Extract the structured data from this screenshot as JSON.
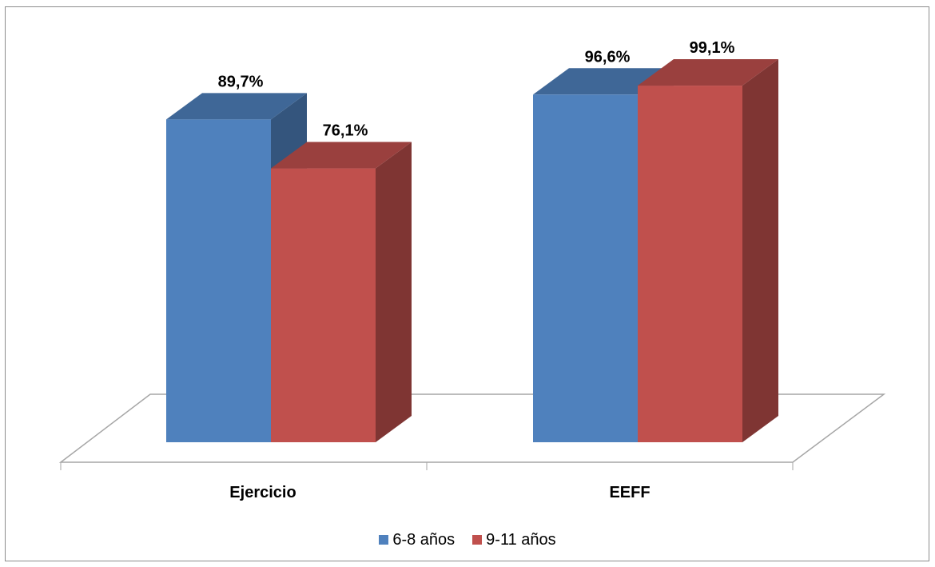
{
  "chart_data": {
    "type": "bar",
    "categories": [
      "Ejercicio",
      "EEFF"
    ],
    "series": [
      {
        "name": "6-8 años",
        "values": [
          89.7,
          96.6
        ],
        "labels": [
          "89,7%",
          "96,6%"
        ],
        "color": "#4F81BD"
      },
      {
        "name": "9-11 años",
        "values": [
          76.1,
          99.1
        ],
        "labels": [
          "76,1%",
          "99,1%"
        ],
        "color": "#C0504D"
      }
    ],
    "ylim": [
      0,
      100
    ],
    "grid": false,
    "legend": "bottom",
    "style": "3d-column"
  }
}
